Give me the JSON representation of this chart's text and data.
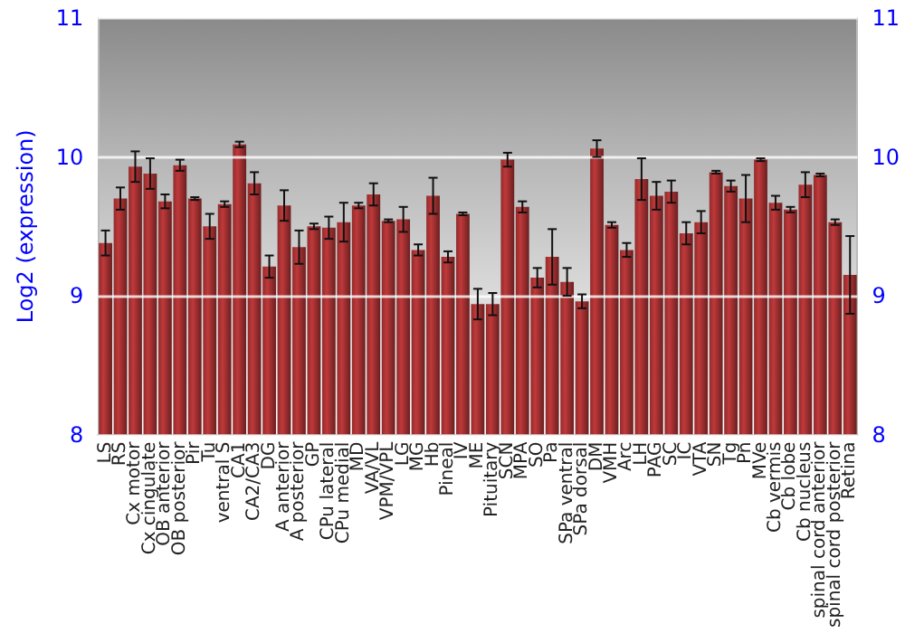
{
  "chart_data": {
    "type": "bar",
    "ylabel": "Log2 (expression)",
    "categories": [
      "LS",
      "RS",
      "Cx motor",
      "Cx cingulate",
      "OB anterior",
      "OB posterior",
      "Pir",
      "Tu",
      "ventral S",
      "CA1",
      "CA2/CA3",
      "DG",
      "A anterior",
      "A posterior",
      "GP",
      "CPu lateral",
      "CPu medial",
      "MD",
      "VA/VL",
      "VPM/VPL",
      "LG",
      "MG",
      "Hb",
      "Pineal",
      "IV",
      "ME",
      "Pituitary",
      "SCN",
      "MPA",
      "SO",
      "Pa",
      "SPa ventral",
      "SPa dorsal",
      "DM",
      "VMH",
      "Arc",
      "LH",
      "PAG",
      "SC",
      "IC",
      "VTA",
      "SN",
      "Tg",
      "Pn",
      "MVe",
      "Cb vermis",
      "Cb lobe",
      "Cb nucleus",
      "spinal cord anterior",
      "spinal cord posterior",
      "Retina"
    ],
    "values": [
      9.38,
      9.7,
      9.93,
      9.88,
      9.68,
      9.94,
      9.7,
      9.5,
      9.66,
      10.09,
      9.81,
      9.21,
      9.65,
      9.35,
      9.5,
      9.49,
      9.53,
      9.65,
      9.73,
      9.54,
      9.55,
      9.33,
      9.72,
      9.28,
      9.59,
      8.94,
      8.94,
      9.98,
      9.64,
      9.13,
      9.28,
      9.1,
      8.96,
      10.06,
      9.51,
      9.33,
      9.84,
      9.72,
      9.75,
      9.45,
      9.53,
      9.89,
      9.79,
      9.7,
      9.98,
      9.67,
      9.62,
      9.8,
      9.87,
      9.53,
      9.15
    ],
    "errors": [
      0.09,
      0.08,
      0.11,
      0.11,
      0.05,
      0.04,
      0.01,
      0.09,
      0.02,
      0.02,
      0.08,
      0.08,
      0.11,
      0.12,
      0.02,
      0.08,
      0.14,
      0.02,
      0.08,
      0.01,
      0.09,
      0.04,
      0.13,
      0.04,
      0.01,
      0.11,
      0.08,
      0.05,
      0.04,
      0.07,
      0.2,
      0.1,
      0.05,
      0.06,
      0.02,
      0.05,
      0.15,
      0.1,
      0.08,
      0.08,
      0.08,
      0.01,
      0.04,
      0.17,
      0.01,
      0.05,
      0.02,
      0.09,
      0.01,
      0.02,
      0.28
    ],
    "color": "#c0393a",
    "ylim": [
      8,
      11
    ],
    "yticks": [
      8,
      9,
      10,
      11
    ],
    "y2lim": [
      8,
      11
    ],
    "y2ticks": [
      8,
      9,
      10,
      11
    ],
    "grid": "y"
  }
}
